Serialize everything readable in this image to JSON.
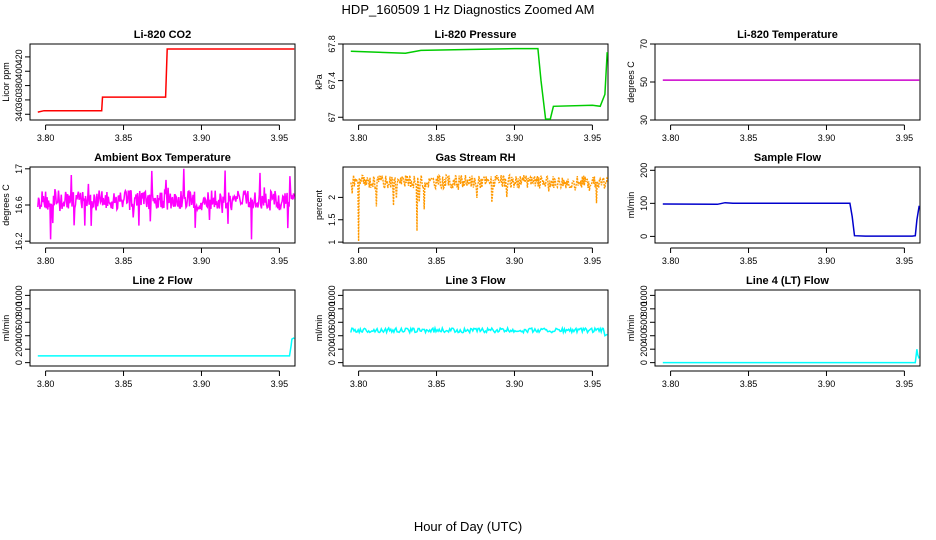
{
  "page": {
    "title": "HDP_160509  1 Hz Diagnostics Zoomed AM",
    "xlabel": "Hour of Day (UTC)"
  },
  "chart_data": [
    {
      "type": "line",
      "title": "Li-820 CO2",
      "ylabel": "Licor ppm",
      "color": "#ff0000",
      "xlim": [
        3.79,
        3.96
      ],
      "ylim": [
        332,
        438
      ],
      "yticks": [
        340,
        360,
        380,
        400,
        420
      ],
      "xticks": [
        3.8,
        3.85,
        3.9,
        3.95
      ],
      "series": [
        {
          "x": [
            3.795,
            3.799,
            3.836,
            3.8365,
            3.877,
            3.878,
            3.9595
          ],
          "y": [
            343,
            345,
            345,
            364,
            364,
            431,
            431
          ]
        }
      ]
    },
    {
      "type": "line",
      "title": "Li-820 Pressure",
      "ylabel": "kPa",
      "color": "#00cc00",
      "xlim": [
        3.79,
        3.96
      ],
      "ylim": [
        66.97,
        67.8
      ],
      "yticks": [
        67.0,
        67.4,
        67.8
      ],
      "xticks": [
        3.8,
        3.85,
        3.9,
        3.95
      ],
      "series": [
        {
          "x": [
            3.795,
            3.83,
            3.84,
            3.87,
            3.9,
            3.915,
            3.917,
            3.92,
            3.923,
            3.925,
            3.95,
            3.955,
            3.958,
            3.9595
          ],
          "y": [
            67.72,
            67.7,
            67.73,
            67.74,
            67.75,
            67.75,
            67.4,
            66.98,
            66.98,
            67.12,
            67.13,
            67.12,
            67.25,
            67.71
          ]
        }
      ]
    },
    {
      "type": "line",
      "title": "Li-820 Temperature",
      "ylabel": "degrees C",
      "color": "#cc00cc",
      "xlim": [
        3.79,
        3.96
      ],
      "ylim": [
        30,
        70
      ],
      "yticks": [
        30,
        50,
        70
      ],
      "xticks": [
        3.8,
        3.85,
        3.9,
        3.95
      ],
      "series": [
        {
          "x": [
            3.795,
            3.9595
          ],
          "y": [
            51,
            51
          ]
        }
      ]
    },
    {
      "type": "line",
      "title": "Ambient Box Temperature",
      "ylabel": "degrees C",
      "color": "#ff00ff",
      "xlim": [
        3.79,
        3.96
      ],
      "ylim": [
        16.18,
        17.02
      ],
      "yticks": [
        16.2,
        16.6,
        17.0
      ],
      "xticks": [
        3.8,
        3.85,
        3.9,
        3.95
      ],
      "series": [
        {
          "x": [
            3.795,
            3.9595
          ],
          "y": [
            16.65,
            16.65
          ]
        }
      ]
    },
    {
      "type": "line",
      "title": "Gas Stream RH",
      "ylabel": "percent",
      "color": "#ff9900",
      "xlim": [
        3.79,
        3.96
      ],
      "ylim": [
        0.98,
        2.68
      ],
      "yticks": [
        1.0,
        1.5,
        2.0
      ],
      "xticks": [
        3.8,
        3.85,
        3.9,
        3.95
      ],
      "series": [
        {
          "x": [
            3.795,
            3.9595
          ],
          "y": [
            2.35,
            2.35
          ]
        }
      ]
    },
    {
      "type": "line",
      "title": "Sample Flow",
      "ylabel": "ml/min",
      "color": "#0000cc",
      "xlim": [
        3.79,
        3.96
      ],
      "ylim": [
        -20,
        210
      ],
      "yticks": [
        0,
        100,
        200
      ],
      "xticks": [
        3.8,
        3.85,
        3.9,
        3.95
      ],
      "series": [
        {
          "x": [
            3.795,
            3.83,
            3.835,
            3.84,
            3.86,
            3.915,
            3.9165,
            3.918,
            3.925,
            3.955,
            3.957,
            3.958,
            3.9595
          ],
          "y": [
            98,
            97,
            102,
            100,
            100,
            100,
            60,
            2,
            1,
            1,
            2,
            50,
            93
          ]
        }
      ]
    },
    {
      "type": "line",
      "title": "Line 2 Flow",
      "ylabel": "ml/min",
      "color": "#00ffff",
      "xlim": [
        3.79,
        3.96
      ],
      "ylim": [
        -50,
        1080
      ],
      "yticks": [
        0,
        200,
        400,
        600,
        800,
        1000
      ],
      "xticks": [
        3.8,
        3.85,
        3.9,
        3.95
      ],
      "series": [
        {
          "x": [
            3.795,
            3.9565,
            3.9575,
            3.958,
            3.9595
          ],
          "y": [
            100,
            100,
            250,
            350,
            370
          ]
        }
      ]
    },
    {
      "type": "line",
      "title": "Line 3 Flow",
      "ylabel": "ml/min",
      "color": "#00ffff",
      "xlim": [
        3.79,
        3.96
      ],
      "ylim": [
        -50,
        1080
      ],
      "yticks": [
        0,
        200,
        400,
        600,
        800,
        1000
      ],
      "xticks": [
        3.8,
        3.85,
        3.9,
        3.95
      ],
      "series": [
        {
          "x": [
            3.795,
            3.957,
            3.958,
            3.9595
          ],
          "y": [
            480,
            480,
            400,
            420
          ]
        }
      ]
    },
    {
      "type": "line",
      "title": "Line 4 (LT) Flow",
      "ylabel": "ml/min",
      "color": "#00ffff",
      "xlim": [
        3.79,
        3.96
      ],
      "ylim": [
        -50,
        1080
      ],
      "yticks": [
        0,
        200,
        400,
        600,
        800,
        1000
      ],
      "xticks": [
        3.8,
        3.85,
        3.9,
        3.95
      ],
      "series": [
        {
          "x": [
            3.795,
            3.957,
            3.958,
            3.9585,
            3.9595
          ],
          "y": [
            0,
            0,
            200,
            120,
            60
          ]
        }
      ]
    }
  ]
}
